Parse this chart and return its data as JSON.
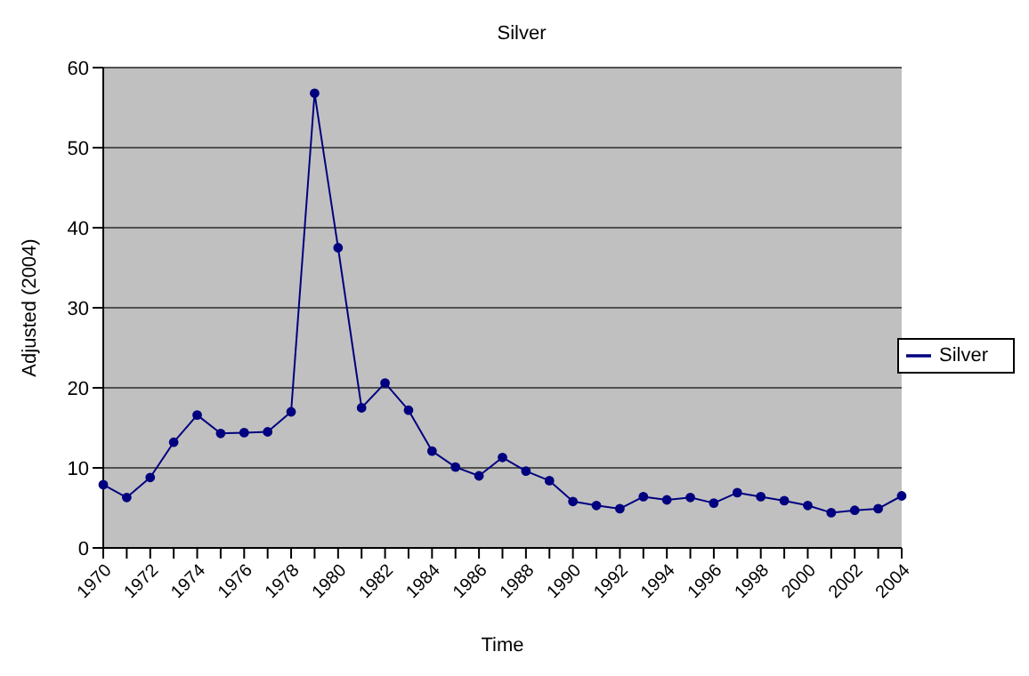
{
  "chart_data": {
    "type": "line",
    "title": "Silver",
    "xlabel": "Time",
    "ylabel": "Adjusted (2004)",
    "categories": [
      "1970",
      null,
      "1972",
      null,
      "1974",
      null,
      "1976",
      null,
      "1978",
      null,
      "1980",
      null,
      "1982",
      null,
      "1984",
      null,
      "1986",
      null,
      "1988",
      null,
      "1990",
      null,
      "1992",
      null,
      "1994",
      null,
      "1996",
      null,
      "1998",
      null,
      "2000",
      null,
      "2002",
      null,
      "2004"
    ],
    "series": [
      {
        "name": "Silver",
        "color": "#000080",
        "values": [
          7.9,
          6.3,
          8.8,
          13.2,
          16.6,
          14.3,
          14.4,
          14.5,
          17.0,
          56.8,
          37.5,
          17.5,
          20.6,
          17.2,
          12.1,
          10.1,
          9.0,
          11.3,
          9.6,
          8.4,
          5.8,
          5.3,
          4.9,
          6.4,
          6.0,
          6.3,
          5.6,
          6.9,
          6.4,
          5.9,
          5.3,
          4.4,
          4.7,
          4.9,
          6.5
        ]
      }
    ],
    "ylim": [
      0,
      60
    ],
    "yticks": [
      0,
      10,
      20,
      30,
      40,
      50,
      60
    ],
    "grid": "y",
    "legend": "right",
    "marker": "circle",
    "line_style": "solid"
  }
}
